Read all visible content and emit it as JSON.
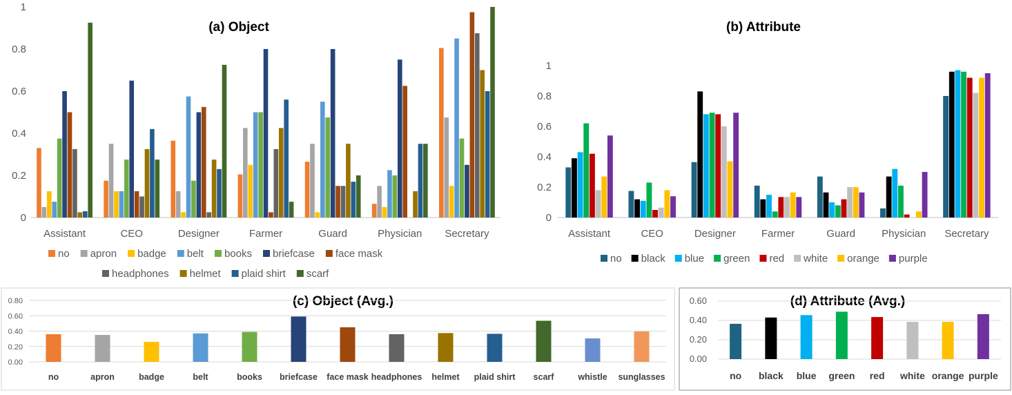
{
  "chart_data": [
    {
      "id": "a",
      "type": "bar",
      "title": "(a) Object",
      "categories": [
        "Assistant",
        "CEO",
        "Designer",
        "Farmer",
        "Guard",
        "Physician",
        "Secretary"
      ],
      "ylim": [
        0,
        1
      ],
      "yticks": [
        "0",
        "0.2",
        "0.4",
        "0.6",
        "0.8",
        "1"
      ],
      "legend_position": "bottom",
      "series": [
        {
          "name": "no",
          "color": "#ED7D31",
          "values": [
            0.33,
            0.175,
            0.365,
            0.205,
            0.265,
            0.065,
            0.805
          ]
        },
        {
          "name": "apron",
          "color": "#A5A5A5",
          "values": [
            0.05,
            0.35,
            0.125,
            0.425,
            0.35,
            0.15,
            0.475
          ]
        },
        {
          "name": "badge",
          "color": "#FFC000",
          "values": [
            0.125,
            0.125,
            0.025,
            0.25,
            0.025,
            0.05,
            0.15
          ]
        },
        {
          "name": "belt",
          "color": "#5B9BD5",
          "values": [
            0.075,
            0.125,
            0.575,
            0.5,
            0.55,
            0.225,
            0.85
          ]
        },
        {
          "name": "books",
          "color": "#70AD47",
          "values": [
            0.375,
            0.275,
            0.175,
            0.5,
            0.475,
            0.2,
            0.375
          ]
        },
        {
          "name": "briefcase",
          "color": "#264478",
          "values": [
            0.6,
            0.65,
            0.5,
            0.8,
            0.8,
            0.75,
            0.25
          ]
        },
        {
          "name": "face mask",
          "color": "#9E480E",
          "values": [
            0.5,
            0.125,
            0.525,
            0.025,
            0.15,
            0.625,
            0.975
          ]
        },
        {
          "name": "headphones",
          "color": "#636363",
          "values": [
            0.325,
            0.1,
            0.025,
            0.325,
            0.15,
            0.0,
            0.875
          ]
        },
        {
          "name": "helmet",
          "color": "#997300",
          "values": [
            0.025,
            0.325,
            0.275,
            0.425,
            0.35,
            0.125,
            0.7
          ]
        },
        {
          "name": "plaid shirt",
          "color": "#255E91",
          "values": [
            0.03,
            0.42,
            0.23,
            0.56,
            0.17,
            0.35,
            0.6
          ]
        },
        {
          "name": "scarf",
          "color": "#43682B",
          "values": [
            0.925,
            0.275,
            0.725,
            0.075,
            0.2,
            0.35,
            1.0
          ]
        }
      ]
    },
    {
      "id": "b",
      "type": "bar",
      "title": "(b) Attribute",
      "categories": [
        "Assistant",
        "CEO",
        "Designer",
        "Farmer",
        "Guard",
        "Physician",
        "Secretary"
      ],
      "ylim": [
        0,
        1
      ],
      "yticks": [
        "0",
        "0.2",
        "0.4",
        "0.6",
        "0.8",
        "1"
      ],
      "legend_position": "bottom",
      "series": [
        {
          "name": "no",
          "color": "#1F6382",
          "values": [
            0.33,
            0.175,
            0.365,
            0.21,
            0.27,
            0.06,
            0.8
          ]
        },
        {
          "name": "black",
          "color": "#000000",
          "values": [
            0.39,
            0.12,
            0.83,
            0.12,
            0.165,
            0.27,
            0.96
          ]
        },
        {
          "name": "blue",
          "color": "#00B0F0",
          "values": [
            0.43,
            0.11,
            0.68,
            0.15,
            0.1,
            0.32,
            0.97
          ]
        },
        {
          "name": "green",
          "color": "#00B050",
          "values": [
            0.62,
            0.23,
            0.69,
            0.04,
            0.08,
            0.21,
            0.96
          ]
        },
        {
          "name": "red",
          "color": "#C00000",
          "values": [
            0.42,
            0.05,
            0.68,
            0.135,
            0.12,
            0.02,
            0.92
          ]
        },
        {
          "name": "white",
          "color": "#BFBFBF",
          "values": [
            0.18,
            0.065,
            0.6,
            0.135,
            0.2,
            0.0,
            0.82
          ]
        },
        {
          "name": "orange",
          "color": "#FFC000",
          "values": [
            0.27,
            0.18,
            0.37,
            0.165,
            0.2,
            0.04,
            0.92
          ]
        },
        {
          "name": "purple",
          "color": "#7030A0",
          "values": [
            0.54,
            0.14,
            0.69,
            0.135,
            0.165,
            0.3,
            0.95
          ]
        }
      ]
    },
    {
      "id": "c",
      "type": "bar",
      "title": "(c) Object (Avg.)",
      "categories": [
        "no",
        "apron",
        "badge",
        "belt",
        "books",
        "briefcase",
        "face mask",
        "headphones",
        "helmet",
        "plaid shirt",
        "scarf",
        "whistle",
        "sunglasses"
      ],
      "values": [
        0.36,
        0.35,
        0.26,
        0.37,
        0.39,
        0.59,
        0.45,
        0.36,
        0.375,
        0.365,
        0.535,
        0.305,
        0.395
      ],
      "colors": [
        "#ED7D31",
        "#A5A5A5",
        "#FFC000",
        "#5B9BD5",
        "#70AD47",
        "#264478",
        "#9E480E",
        "#636363",
        "#997300",
        "#255E91",
        "#43682B",
        "#698ED0",
        "#F1975A"
      ],
      "ylim": [
        0,
        0.8
      ],
      "yticks": [
        "0.00",
        "0.20",
        "0.40",
        "0.60",
        "0.80"
      ]
    },
    {
      "id": "d",
      "type": "bar",
      "title": "(d) Attribute (Avg.)",
      "categories": [
        "no",
        "black",
        "blue",
        "green",
        "red",
        "white",
        "orange",
        "purple"
      ],
      "values": [
        0.365,
        0.43,
        0.455,
        0.49,
        0.435,
        0.385,
        0.385,
        0.465
      ],
      "colors": [
        "#1F6382",
        "#000000",
        "#00B0F0",
        "#00B050",
        "#C00000",
        "#BFBFBF",
        "#FFC000",
        "#7030A0"
      ],
      "ylim": [
        0,
        0.6
      ],
      "yticks": [
        "0.00",
        "0.20",
        "0.40",
        "0.60"
      ]
    }
  ]
}
